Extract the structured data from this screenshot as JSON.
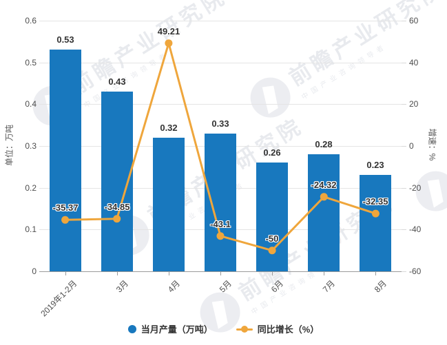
{
  "chart_data": {
    "type": "bar",
    "subtype": "bar-line-combo",
    "categories": [
      "2019年1-2月",
      "3月",
      "4月",
      "5月",
      "6月",
      "7月",
      "8月"
    ],
    "series": [
      {
        "name": "当月产量（万吨）",
        "type": "bar",
        "axis": "left",
        "color": "#1878be",
        "values": [
          0.53,
          0.43,
          0.32,
          0.33,
          0.26,
          0.28,
          0.23
        ],
        "labels": [
          "0.53",
          "0.43",
          "0.32",
          "0.33",
          "0.26",
          "0.28",
          "0.23"
        ]
      },
      {
        "name": "同比增长（%）",
        "type": "line",
        "axis": "right",
        "color": "#efa63c",
        "values": [
          -35.37,
          -34.85,
          49.21,
          -43.1,
          -50,
          -24.32,
          -32.35
        ],
        "labels": [
          "-35.37",
          "-34.85",
          "49.21",
          "-43.1",
          "-50",
          "-24.32",
          "-32.35"
        ]
      }
    ],
    "left_axis": {
      "title": "单位：万吨",
      "min": 0,
      "max": 0.6,
      "tick_step": 0.1,
      "tick_labels": [
        "0.6",
        "0.5",
        "0.4",
        "0.3",
        "0.2",
        "0.1",
        "0"
      ]
    },
    "right_axis": {
      "title": "增速：%",
      "min": -60,
      "max": 60,
      "tick_step": 20,
      "tick_labels": [
        "60",
        "40",
        "20",
        "0",
        "-20",
        "-40",
        "-60"
      ]
    },
    "grid": true,
    "legend_position": "bottom",
    "title": ""
  },
  "legend": {
    "items": [
      {
        "label": "当月产量（万吨）",
        "marker": "circle",
        "color": "#1878be"
      },
      {
        "label": "同比增长（%）",
        "marker": "line-dot",
        "color": "#efa63c"
      }
    ]
  },
  "watermark": {
    "big_text": "前瞻产业研究院",
    "small_text": "中国产业咨询领导者"
  },
  "colors": {
    "bar": "#1878be",
    "line": "#efa63c",
    "grid": "#e4e4e4",
    "axis_line": "#9a9a9a",
    "tick_text": "#4d4d4d",
    "value_label": "#333333",
    "background": "#ffffff",
    "watermark": "#8c96aa"
  }
}
